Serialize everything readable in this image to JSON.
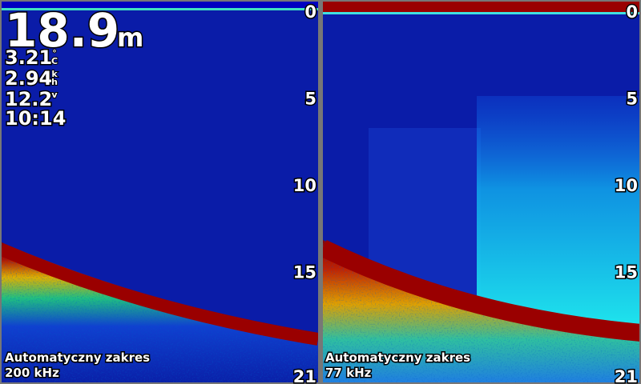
{
  "depth_readout": {
    "value": "18.9",
    "unit": "m"
  },
  "sensors": [
    {
      "value": "3.21",
      "unit": "°C"
    },
    {
      "value": "2.94",
      "unit": "kh"
    },
    {
      "value": "12.2",
      "unit": "v"
    }
  ],
  "time": "10:14",
  "depth_scale": {
    "range": [
      0,
      21
    ],
    "ticks": [
      0,
      5,
      10,
      15,
      21
    ]
  },
  "panels": [
    {
      "range_mode": "Automatyczny zakres",
      "frequency": "200 kHz"
    },
    {
      "range_mode": "Automatyczny zakres",
      "frequency": "77 kHz"
    }
  ]
}
